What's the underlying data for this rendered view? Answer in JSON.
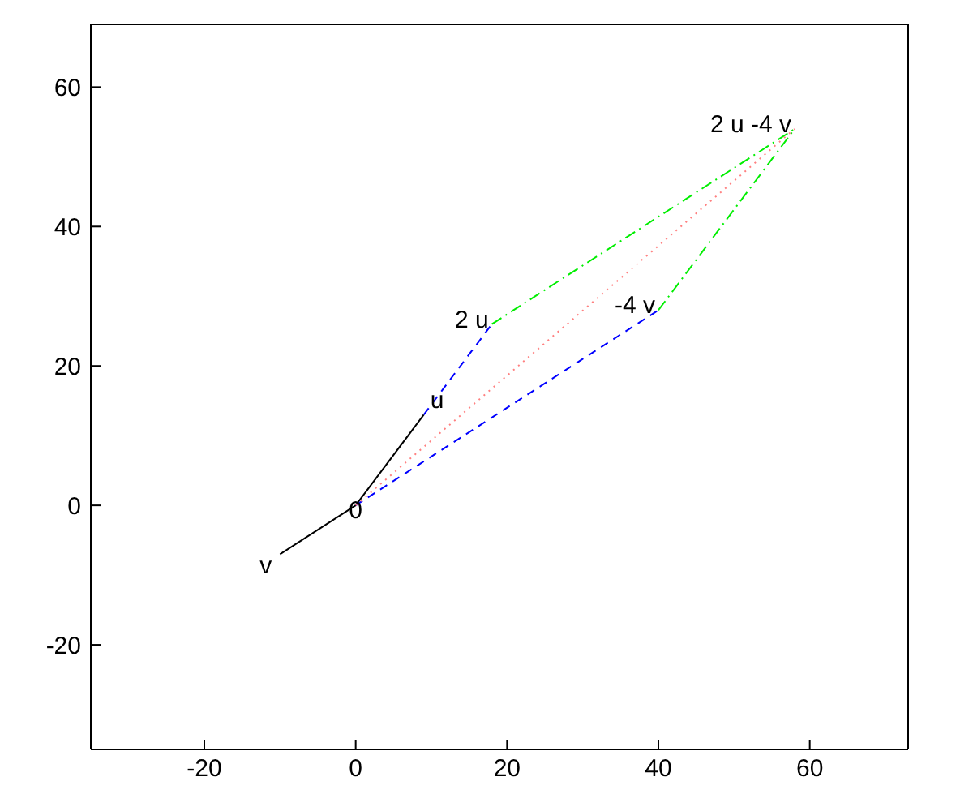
{
  "chart_data": {
    "type": "line",
    "xlim": [
      -35,
      73
    ],
    "ylim": [
      -35,
      69
    ],
    "xticks": [
      -20,
      0,
      20,
      40,
      60
    ],
    "yticks": [
      -20,
      0,
      20,
      40,
      60
    ],
    "grid": false,
    "marker": "none",
    "series": [
      {
        "color": "#000000",
        "line_style": "solid",
        "x": [
          -10,
          0,
          9
        ],
        "values": [
          -7,
          0,
          13
        ]
      },
      {
        "color": "#0000ff",
        "line_style": "dashed",
        "x": [
          9,
          18
        ],
        "values": [
          13,
          26
        ]
      },
      {
        "color": "#0000ff",
        "line_style": "dashed",
        "x": [
          0,
          40
        ],
        "values": [
          0,
          28
        ]
      },
      {
        "color": "#00ee00",
        "line_style": "dashdot",
        "x": [
          18,
          58
        ],
        "values": [
          26,
          54
        ]
      },
      {
        "color": "#00ee00",
        "line_style": "dashdot",
        "x": [
          40,
          58
        ],
        "values": [
          28,
          54
        ]
      },
      {
        "color": "#ff8080",
        "line_style": "dotted",
        "x": [
          0,
          58
        ],
        "values": [
          0,
          54
        ]
      }
    ],
    "annotations": [
      {
        "text": "0",
        "x": 0,
        "y": 0
      },
      {
        "text": "u",
        "x": 9,
        "y": 13
      },
      {
        "text": "v",
        "x": -10,
        "y": -7
      },
      {
        "text": "2 u",
        "x": 18,
        "y": 26
      },
      {
        "text": "-4 v",
        "x": 40,
        "y": 28
      },
      {
        "text": "2 u -4 v",
        "x": 58,
        "y": 54
      }
    ]
  }
}
